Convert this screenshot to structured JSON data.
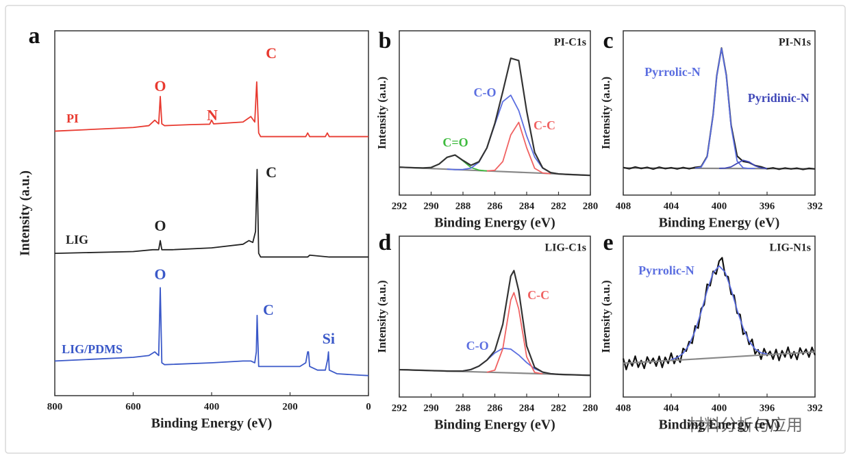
{
  "chart_data": [
    {
      "type": "line",
      "panel_label": "a",
      "xlabel": "Binding Energy (eV)",
      "ylabel": "Intensity (a.u.)",
      "xlim": [
        800,
        0
      ],
      "ylim": [
        0,
        100
      ],
      "xticks": [
        800,
        600,
        400,
        200,
        0
      ],
      "series": [
        {
          "name": "PI",
          "color": "#e8392f",
          "x": [
            800,
            700,
            600,
            560,
            545,
            535,
            531,
            527,
            520,
            450,
            405,
            400,
            395,
            320,
            300,
            290,
            285,
            280,
            275,
            200,
            160,
            155,
            150,
            110,
            105,
            100,
            50,
            0
          ],
          "values": [
            72.5,
            73,
            73.5,
            74,
            75.5,
            74.5,
            82,
            74.5,
            74,
            74.3,
            74.4,
            75.5,
            74.5,
            75,
            76.5,
            75,
            86,
            72,
            71,
            71,
            71,
            72,
            71,
            71,
            72,
            71,
            71,
            71
          ]
        },
        {
          "name": "LIG",
          "color": "#222222",
          "x": [
            800,
            600,
            550,
            535,
            531,
            527,
            500,
            400,
            320,
            305,
            295,
            288,
            284,
            280,
            275,
            200,
            155,
            150,
            100,
            50,
            0
          ],
          "values": [
            39,
            39.5,
            40,
            40,
            42.5,
            40,
            40,
            40.5,
            41.5,
            42.5,
            42,
            45,
            62,
            39,
            38,
            38,
            38,
            38.5,
            38,
            38,
            38
          ]
        },
        {
          "name": "LIG/PDMS",
          "color": "#3a58c8",
          "x": [
            800,
            700,
            600,
            560,
            545,
            535,
            531,
            527,
            520,
            400,
            320,
            300,
            290,
            286,
            284,
            280,
            250,
            175,
            160,
            155,
            153,
            150,
            130,
            110,
            104,
            102,
            100,
            80,
            20,
            0
          ],
          "values": [
            9.5,
            10,
            10.5,
            11,
            12,
            11,
            29.6,
            9,
            8.5,
            9,
            9.5,
            9.5,
            9,
            12,
            22,
            8,
            8,
            8,
            9,
            12,
            12,
            8,
            7,
            7,
            10,
            12,
            7,
            6,
            5.6,
            5.5
          ]
        }
      ],
      "annotations": [
        {
          "text": "C",
          "color": "#e8392f"
        },
        {
          "text": "O",
          "color": "#e8392f"
        },
        {
          "text": "N",
          "color": "#e8392f"
        },
        {
          "text": "C",
          "color": "#222222"
        },
        {
          "text": "O",
          "color": "#222222"
        },
        {
          "text": "C",
          "color": "#3a58c8"
        },
        {
          "text": "O",
          "color": "#3a58c8"
        },
        {
          "text": "Si",
          "color": "#3a58c8"
        }
      ]
    },
    {
      "type": "line",
      "panel_label": "b",
      "title": "PI-C1s",
      "xlabel": "Binding Energy (eV)",
      "ylabel": "Intensity (a.u.)",
      "xlim": [
        292,
        280
      ],
      "ylim": [
        0,
        100
      ],
      "xticks": [
        292,
        290,
        288,
        286,
        284,
        282,
        280
      ],
      "series": [
        {
          "color": "#888888",
          "x": [
            292,
            286,
            283,
            280
          ],
          "values": [
            17,
            14.5,
            13.3,
            12
          ]
        },
        {
          "name": "C=O",
          "color": "#3dbb3d",
          "x": [
            291,
            290.5,
            290,
            289.5,
            289,
            288.5,
            288,
            287.5,
            287,
            286.5
          ],
          "values": [
            16.6,
            16.5,
            16.8,
            18.9,
            23.0,
            24.4,
            20.8,
            16.8,
            15.2,
            14.7
          ]
        },
        {
          "name": "C-C",
          "color": "#f06262",
          "x": [
            286.5,
            286,
            285.5,
            285,
            284.5,
            284,
            283.5,
            283,
            282.5
          ],
          "values": [
            14.7,
            15.1,
            20.4,
            36.6,
            44.3,
            28.8,
            16.3,
            13.5,
            13.0
          ]
        },
        {
          "name": "C-O",
          "color": "#5b6ee0",
          "x": [
            289,
            288.5,
            288,
            287.5,
            287,
            286.5,
            286,
            285.5,
            285,
            284.5,
            284,
            283.5,
            283,
            282.5,
            282
          ],
          "values": [
            15.8,
            15.5,
            15.6,
            16.4,
            20.0,
            28.7,
            43.0,
            56.9,
            60.8,
            51.5,
            36.0,
            23.2,
            16.4,
            13.7,
            12.9
          ]
        },
        {
          "color": "#333333",
          "x": [
            292,
            291.5,
            291,
            290.5,
            290,
            289.5,
            289,
            288.5,
            288,
            287.5,
            287,
            286.5,
            286,
            285.5,
            285,
            284.5,
            284,
            283.5,
            283,
            282.5,
            282,
            281.5,
            281,
            280.5,
            280
          ],
          "values": [
            17,
            16.8,
            16.6,
            16.5,
            16.8,
            18.9,
            23.0,
            24.4,
            21.1,
            18.1,
            20.3,
            28.7,
            43.6,
            63.0,
            83.3,
            81.9,
            51.1,
            26.0,
            16.6,
            13.7,
            12.9,
            12.6,
            12.4,
            12.2,
            12
          ]
        }
      ]
    },
    {
      "type": "line",
      "panel_label": "c",
      "title": "PI-N1s",
      "xlabel": "Binding Energy (eV)",
      "ylabel": "Intensity (a.u.)",
      "xlim": [
        408,
        392
      ],
      "ylim": [
        0,
        100
      ],
      "xticks": [
        408,
        404,
        400,
        396,
        392
      ],
      "series": [
        {
          "color": "#888888",
          "x": [
            408,
            392
          ],
          "values": [
            16.5,
            16.0
          ]
        },
        {
          "color": "#222222",
          "x": [
            408,
            407.5,
            407,
            406.5,
            406,
            405.5,
            405,
            404.5,
            404,
            403.5,
            403,
            402.5,
            402,
            401.5,
            401,
            400.5,
            400.2,
            399.8,
            399.4,
            399,
            398.5,
            398,
            397.5,
            397,
            396.5,
            396,
            395.5,
            395,
            394.5,
            394,
            393.5,
            393,
            392.5,
            392
          ],
          "values": [
            16.8,
            16.0,
            17.1,
            16.2,
            16.9,
            15.8,
            17.0,
            16.1,
            16.7,
            15.9,
            16.8,
            16.0,
            16.9,
            17.3,
            23.5,
            49.0,
            72.6,
            89.5,
            72.9,
            42.5,
            23.8,
            20.5,
            19.8,
            18.0,
            17.2,
            16.0,
            16.6,
            15.7,
            16.5,
            15.9,
            16.4,
            15.6,
            16.3,
            15.9
          ]
        },
        {
          "name": "Pyrrolic-N",
          "color": "#5b6ee0",
          "x": [
            402,
            401.5,
            401,
            400.5,
            400.2,
            399.8,
            399.4,
            399,
            398.5,
            398,
            397.5,
            397
          ],
          "values": [
            16.4,
            17.0,
            23.2,
            48.8,
            72.4,
            89.3,
            72.4,
            41.6,
            20.7,
            16.6,
            16.2,
            16.2
          ]
        },
        {
          "name": "Pyridinic-N",
          "color": "#4048b8",
          "x": [
            400,
            399.5,
            399,
            398.5,
            398,
            397.5,
            397,
            396.5,
            396
          ],
          "values": [
            16.3,
            16.4,
            17.2,
            19.3,
            21.2,
            20.2,
            17.8,
            16.5,
            16.2
          ]
        }
      ]
    },
    {
      "type": "line",
      "panel_label": "d",
      "title": "LIG-C1s",
      "xlabel": "Binding Energy (eV)",
      "ylabel": "Intensity (a.u.)",
      "xlim": [
        292,
        280
      ],
      "ylim": [
        0,
        100
      ],
      "xticks": [
        292,
        290,
        288,
        286,
        284,
        282,
        280
      ],
      "series": [
        {
          "color": "#888888",
          "x": [
            292,
            286,
            283,
            280
          ],
          "values": [
            17,
            15.3,
            14.4,
            13.5
          ]
        },
        {
          "name": "C-O",
          "color": "#5b6ee0",
          "x": [
            289,
            288.5,
            288,
            287.5,
            287,
            286.5,
            286,
            285.5,
            285,
            284.5,
            284,
            283.5,
            283,
            282.5,
            282
          ],
          "values": [
            16.1,
            16.1,
            16.2,
            17.1,
            19.2,
            22.9,
            27.4,
            30.3,
            29.8,
            26.1,
            21.4,
            17.6,
            15.5,
            14.5,
            14.1
          ]
        },
        {
          "name": "C-C",
          "color": "#f06262",
          "x": [
            286.5,
            286,
            285.5,
            285,
            284.8,
            284.5,
            284,
            283.5,
            283
          ],
          "values": [
            15.4,
            16.7,
            30.0,
            60.3,
            64.9,
            54.8,
            25.0,
            15.3,
            14.4
          ]
        },
        {
          "color": "#333333",
          "x": [
            292,
            291.5,
            291,
            290.5,
            290,
            289.5,
            289,
            288.5,
            288,
            287.5,
            287,
            286.5,
            286,
            285.5,
            285,
            284.8,
            284.5,
            284,
            283.5,
            283,
            282.5,
            282,
            281.5,
            281,
            280.5,
            280
          ],
          "values": [
            17.0,
            16.9,
            16.7,
            16.6,
            16.4,
            16.3,
            16.1,
            16.1,
            16.2,
            17.1,
            19.2,
            22.9,
            28.8,
            45.2,
            75.1,
            78.6,
            66.1,
            31.7,
            18.4,
            15.5,
            14.5,
            14.1,
            13.9,
            13.8,
            13.6,
            13.5
          ]
        }
      ]
    },
    {
      "type": "line",
      "panel_label": "e",
      "title": "LIG-N1s",
      "xlabel": "Binding Energy (eV)",
      "ylabel": "Intensity (a.u.)",
      "xlim": [
        408,
        392
      ],
      "ylim": [
        0,
        100
      ],
      "xticks": [
        408,
        404,
        400,
        396,
        392
      ],
      "series": [
        {
          "color": "#111111",
          "x": [
            408,
            407.75,
            407.5,
            407.25,
            407,
            406.75,
            406.5,
            406.25,
            406,
            405.75,
            405.5,
            405.25,
            405,
            404.75,
            404.5,
            404.25,
            404,
            403.75,
            403.5,
            403.25,
            403,
            402.75,
            402.5,
            402.25,
            402,
            401.75,
            401.5,
            401.25,
            401,
            400.75,
            400.5,
            400.25,
            400,
            399.75,
            399.5,
            399.25,
            399,
            398.75,
            398.5,
            398.25,
            398,
            397.75,
            397.5,
            397.25,
            397,
            396.75,
            396.5,
            396.25,
            396,
            395.75,
            395.5,
            395.25,
            395,
            394.75,
            394.5,
            394.25,
            394,
            393.75,
            393.5,
            393.25,
            393,
            392.75,
            392.5,
            392.25,
            392
          ],
          "values": [
            24,
            17.1,
            23.2,
            19.3,
            25.4,
            18.5,
            22.7,
            17.8,
            24.9,
            21.0,
            24.1,
            19.2,
            25.3,
            18.4,
            24.7,
            20.9,
            27.3,
            20.8,
            25.5,
            21.6,
            30.2,
            28.5,
            34.5,
            33.4,
            44.2,
            42.8,
            54.9,
            57.3,
            70.1,
            69.2,
            78.2,
            76.4,
            84.5,
            86.6,
            75.6,
            74.8,
            63.9,
            63.3,
            52.1,
            51.3,
            39.0,
            40.4,
            32.7,
            35.9,
            26.8,
            29.4,
            23.5,
            30.1,
            25.8,
            28.4,
            23.5,
            29.6,
            22.7,
            28.8,
            24.9,
            31.0,
            24.1,
            28.2,
            23.3,
            30.5,
            26.6,
            29.7,
            24.8,
            30.9,
            26.0
          ]
        },
        {
          "color": "#888888",
          "x": [
            408,
            402,
            400,
            398,
            396,
            392
          ],
          "values": [
            21,
            23.6,
            24.5,
            25.4,
            26.3,
            28
          ]
        },
        {
          "name": "Pyrrolic-N",
          "color": "#5b6ee0",
          "x": [
            404,
            403.5,
            403,
            402.5,
            402,
            401.5,
            401,
            400.5,
            400,
            399.5,
            399,
            398.5,
            398,
            397.5,
            397,
            396.5,
            396
          ],
          "values": [
            23.3,
            24.5,
            27.2,
            32.5,
            41.2,
            52.9,
            66.1,
            77.2,
            81.5,
            77.6,
            66.9,
            54.1,
            43.0,
            34.7,
            29.8,
            27.5,
            26.8
          ]
        }
      ]
    }
  ],
  "watermark": "材料分析与应用"
}
